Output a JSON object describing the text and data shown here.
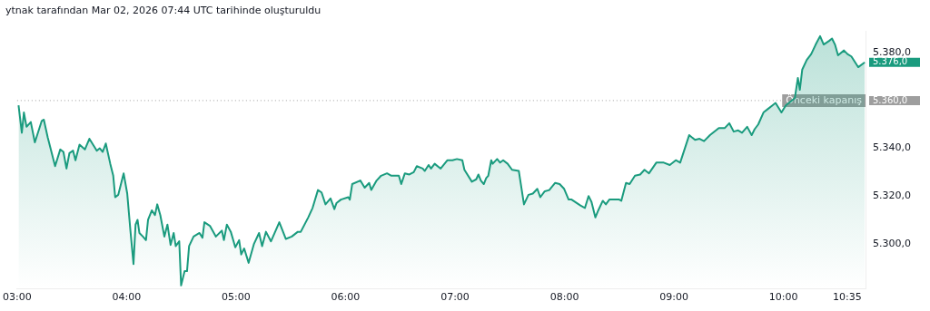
{
  "chart_data": {
    "type": "area",
    "title": "ytnak tarafından Mar 02, 2026 07:44 UTC tarihinde oluşturuldu",
    "x": [
      3.013,
      3.043,
      3.062,
      3.086,
      3.125,
      3.162,
      3.225,
      3.244,
      3.28,
      3.347,
      3.394,
      3.423,
      3.451,
      3.478,
      3.511,
      3.533,
      3.57,
      3.619,
      3.66,
      3.728,
      3.755,
      3.782,
      3.81,
      3.851,
      3.878,
      3.896,
      3.924,
      3.973,
      4.006,
      4.035,
      4.063,
      4.082,
      4.1,
      4.117,
      4.149,
      4.177,
      4.196,
      4.231,
      4.259,
      4.28,
      4.308,
      4.345,
      4.373,
      4.402,
      4.43,
      4.449,
      4.481,
      4.498,
      4.53,
      4.552,
      4.571,
      4.612,
      4.666,
      4.693,
      4.711,
      4.761,
      4.816,
      4.87,
      4.889,
      4.916,
      4.952,
      4.993,
      5.028,
      5.047,
      5.074,
      5.115,
      5.164,
      5.21,
      5.238,
      5.273,
      5.319,
      5.395,
      5.455,
      5.509,
      5.564,
      5.591,
      5.659,
      5.699,
      5.748,
      5.781,
      5.817,
      5.863,
      5.898,
      5.917,
      5.958,
      6.025,
      6.039,
      6.061,
      6.135,
      6.175,
      6.216,
      6.235,
      6.284,
      6.325,
      6.379,
      6.419,
      6.487,
      6.509,
      6.542,
      6.583,
      6.623,
      6.651,
      6.705,
      6.724,
      6.759,
      6.781,
      6.814,
      6.869,
      6.931,
      6.977,
      7.018,
      7.067,
      7.086,
      7.154,
      7.194,
      7.214,
      7.236,
      7.263,
      7.285,
      7.304,
      7.331,
      7.344,
      7.385,
      7.412,
      7.44,
      7.481,
      7.521,
      7.583,
      7.63,
      7.671,
      7.711,
      7.752,
      7.779,
      7.82,
      7.861,
      7.915,
      7.956,
      7.997,
      8.038,
      8.065,
      8.146,
      8.187,
      8.22,
      8.247,
      8.282,
      8.309,
      8.35,
      8.378,
      8.41,
      8.445,
      8.5,
      8.519,
      8.562,
      8.595,
      8.644,
      8.691,
      8.731,
      8.772,
      8.839,
      8.907,
      8.962,
      9.017,
      9.057,
      9.139,
      9.193,
      9.234,
      9.275,
      9.329,
      9.41,
      9.465,
      9.506,
      9.546,
      9.587,
      9.622,
      9.669,
      9.71,
      9.737,
      9.77,
      9.818,
      9.859,
      9.9,
      9.928,
      9.982,
      10.022,
      10.063,
      10.104,
      10.132,
      10.15,
      10.172,
      10.213,
      10.254,
      10.295,
      10.335,
      10.368,
      10.417,
      10.444,
      10.471,
      10.499,
      10.553,
      10.585,
      10.621,
      10.683,
      10.743
    ],
    "series": [
      {
        "color": "#1a9b7e",
        "values": [
          5358,
          5346.5,
          5355,
          5349,
          5351,
          5342.5,
          5351.5,
          5352,
          5344.5,
          5332.5,
          5339.5,
          5338.5,
          5331.5,
          5338,
          5339,
          5335,
          5341.5,
          5339.5,
          5344,
          5339,
          5340,
          5338.5,
          5342,
          5333.5,
          5328.5,
          5319.5,
          5320.5,
          5329.5,
          5321,
          5305.5,
          5291.5,
          5308,
          5310,
          5304.5,
          5303,
          5301.5,
          5310,
          5314,
          5312,
          5316.5,
          5312,
          5303,
          5308,
          5299.5,
          5304.5,
          5299,
          5301,
          5282.5,
          5288.5,
          5288.5,
          5299,
          5303,
          5304.5,
          5302.5,
          5309,
          5307.5,
          5303,
          5305.5,
          5301.5,
          5308,
          5305,
          5298.5,
          5301.5,
          5295.5,
          5298,
          5292,
          5300,
          5304.5,
          5299,
          5305,
          5301,
          5309,
          5302,
          5303,
          5305,
          5305,
          5311,
          5315,
          5322.5,
          5321.5,
          5316.5,
          5319,
          5314.5,
          5317,
          5318.5,
          5319.5,
          5318.5,
          5325,
          5326.5,
          5323.5,
          5325.5,
          5322.5,
          5326.5,
          5328.5,
          5329.5,
          5328.5,
          5328.5,
          5325,
          5329.5,
          5329,
          5330,
          5332.5,
          5331.5,
          5330.5,
          5333,
          5331.5,
          5333.5,
          5331.5,
          5335,
          5335,
          5335.5,
          5335,
          5331,
          5326,
          5327,
          5329,
          5326.5,
          5325,
          5327.5,
          5328.5,
          5335,
          5333.5,
          5335.5,
          5334,
          5335,
          5333.5,
          5331,
          5330.5,
          5316.5,
          5320.5,
          5321,
          5323,
          5319.5,
          5322,
          5322.5,
          5325.5,
          5325,
          5323,
          5318.5,
          5318.5,
          5316,
          5315,
          5320,
          5317.5,
          5311,
          5314,
          5318,
          5316.5,
          5318.5,
          5318.5,
          5318.5,
          5318,
          5325.5,
          5325,
          5328.5,
          5329,
          5331,
          5329.5,
          5334,
          5334,
          5333,
          5335,
          5334,
          5345.5,
          5343.5,
          5344,
          5343,
          5345.5,
          5348.5,
          5348.5,
          5350.5,
          5347,
          5347.5,
          5346.5,
          5349,
          5345.5,
          5348,
          5350,
          5355,
          5356.5,
          5358,
          5359,
          5355,
          5358,
          5359.5,
          5361,
          5369.5,
          5364.5,
          5373,
          5377,
          5379.5,
          5383.5,
          5387,
          5383.5,
          5385,
          5386,
          5383.5,
          5379,
          5381,
          5379.5,
          5378.5,
          5374,
          5376
        ]
      }
    ],
    "xlim": [
      3,
      10.75
    ],
    "xticks": [
      {
        "value": 3,
        "label": "03:00"
      },
      {
        "value": 4,
        "label": "04:00"
      },
      {
        "value": 5,
        "label": "05:00"
      },
      {
        "value": 6,
        "label": "06:00"
      },
      {
        "value": 7,
        "label": "07:00"
      },
      {
        "value": 8,
        "label": "08:00"
      },
      {
        "value": 9,
        "label": "09:00"
      },
      {
        "value": 10,
        "label": "10:00"
      },
      {
        "value": 10.5833,
        "label": "10:35"
      }
    ],
    "ylim": [
      5281,
      5389
    ],
    "yticks": [
      {
        "value": 5300,
        "label": "5.300,0"
      },
      {
        "value": 5320,
        "label": "5.320,0"
      },
      {
        "value": 5340,
        "label": "5.340,0"
      },
      {
        "value": 5380,
        "label": "5.380,0"
      }
    ],
    "ref_lines": [
      {
        "axis": "y",
        "value": 5360,
        "label": "Önceki kapanış",
        "color": "#9e9e9e",
        "line_style": "dotted"
      }
    ],
    "annotations": [
      "5.360,0",
      "5.376,0"
    ],
    "grid": false,
    "legend": false,
    "marker": "none",
    "line_style": "solid"
  }
}
